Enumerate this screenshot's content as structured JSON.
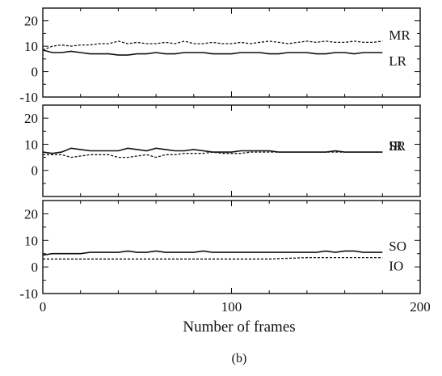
{
  "figure": {
    "caption": "(b)",
    "xlabel": "Number of frames"
  },
  "chart_data": [
    {
      "type": "line",
      "xlim": [
        0,
        200
      ],
      "ylim": [
        -10,
        25
      ],
      "yticks": [
        -10,
        0,
        10,
        20
      ],
      "grid": false,
      "series": [
        {
          "name": "MR",
          "style": "dashed",
          "x": [
            0,
            5,
            10,
            15,
            20,
            25,
            30,
            35,
            40,
            45,
            50,
            55,
            60,
            65,
            70,
            75,
            80,
            85,
            90,
            95,
            100,
            105,
            110,
            115,
            120,
            125,
            130,
            135,
            140,
            145,
            150,
            155,
            160,
            165,
            170,
            175,
            180
          ],
          "y": [
            8.5,
            10,
            10.5,
            10,
            10.5,
            10.5,
            11,
            11,
            12,
            11,
            11.5,
            11,
            11,
            11.5,
            11,
            12,
            11,
            11,
            11.5,
            11,
            11,
            11.5,
            11,
            11.5,
            12,
            11.5,
            11,
            11.5,
            12,
            11.5,
            12,
            11.5,
            11.5,
            12,
            11.5,
            11.5,
            12
          ]
        },
        {
          "name": "LR",
          "style": "solid",
          "x": [
            0,
            5,
            10,
            15,
            20,
            25,
            30,
            35,
            40,
            45,
            50,
            55,
            60,
            65,
            70,
            75,
            80,
            85,
            90,
            95,
            100,
            105,
            110,
            115,
            120,
            125,
            130,
            135,
            140,
            145,
            150,
            155,
            160,
            165,
            170,
            175,
            180
          ],
          "y": [
            8.5,
            7.5,
            7.5,
            8,
            7.5,
            7,
            7,
            7,
            6.5,
            6.5,
            7,
            7,
            7.5,
            7,
            7,
            7.5,
            7.5,
            7.5,
            7,
            7,
            7,
            7.5,
            7.5,
            7.5,
            7,
            7,
            7.5,
            7.5,
            7.5,
            7,
            7,
            7.5,
            7.5,
            7,
            7.5,
            7.5,
            7.5
          ]
        }
      ]
    },
    {
      "type": "line",
      "xlim": [
        0,
        200
      ],
      "ylim": [
        -10,
        25
      ],
      "yticks": [
        0,
        10,
        20
      ],
      "grid": false,
      "series": [
        {
          "name": "SR",
          "style": "solid",
          "x": [
            0,
            5,
            10,
            15,
            20,
            25,
            30,
            35,
            40,
            45,
            50,
            55,
            60,
            65,
            70,
            75,
            80,
            85,
            90,
            95,
            100,
            105,
            110,
            115,
            120,
            125,
            130,
            135,
            140,
            145,
            150,
            155,
            160,
            165,
            170,
            175,
            180
          ],
          "y": [
            7,
            6.5,
            7,
            8.5,
            8,
            7.5,
            7.5,
            7.5,
            7.5,
            8.5,
            8,
            7.5,
            8.5,
            8,
            7.5,
            7.5,
            8,
            7.5,
            7,
            7,
            7,
            7.5,
            7.5,
            7.5,
            7.5,
            7,
            7,
            7,
            7,
            7,
            7,
            7.5,
            7,
            7,
            7,
            7,
            7
          ]
        },
        {
          "name": "IR",
          "style": "dashed",
          "x": [
            0,
            5,
            10,
            15,
            20,
            25,
            30,
            35,
            40,
            45,
            50,
            55,
            60,
            65,
            70,
            75,
            80,
            85,
            90,
            95,
            100,
            105,
            110,
            115,
            120,
            125,
            130,
            135,
            140,
            145,
            150,
            155,
            160,
            165,
            170,
            175,
            180
          ],
          "y": [
            6,
            6,
            6,
            5,
            5.5,
            6,
            6,
            6,
            5,
            5,
            5.5,
            6,
            5,
            6,
            6,
            6.5,
            6.5,
            6.5,
            7,
            6.5,
            6.5,
            6.5,
            7,
            7,
            7,
            7,
            7,
            7,
            7,
            7,
            7,
            7,
            7,
            7,
            7,
            7,
            7
          ]
        }
      ]
    },
    {
      "type": "line",
      "xlim": [
        0,
        200
      ],
      "ylim": [
        -10,
        25
      ],
      "yticks": [
        -10,
        0,
        10,
        20
      ],
      "xticks": [
        0,
        100,
        200
      ],
      "grid": false,
      "series": [
        {
          "name": "SO",
          "style": "solid",
          "x": [
            0,
            5,
            10,
            15,
            20,
            25,
            30,
            35,
            40,
            45,
            50,
            55,
            60,
            65,
            70,
            75,
            80,
            85,
            90,
            95,
            100,
            105,
            110,
            115,
            120,
            125,
            130,
            135,
            140,
            145,
            150,
            155,
            160,
            165,
            170,
            175,
            180
          ],
          "y": [
            4.5,
            5,
            5,
            5,
            5,
            5.5,
            5.5,
            5.5,
            5.5,
            6,
            5.5,
            5.5,
            6,
            5.5,
            5.5,
            5.5,
            5.5,
            6,
            5.5,
            5.5,
            5.5,
            5.5,
            5.5,
            5.5,
            5.5,
            5.5,
            5.5,
            5.5,
            5.5,
            5.5,
            6,
            5.5,
            6,
            6,
            5.5,
            5.5,
            5.5
          ]
        },
        {
          "name": "IO",
          "style": "dashed",
          "x": [
            0,
            20,
            40,
            60,
            80,
            100,
            120,
            140,
            160,
            180
          ],
          "y": [
            3,
            3,
            3,
            3,
            3,
            3,
            3,
            3.5,
            3.5,
            3.5
          ]
        }
      ]
    }
  ]
}
